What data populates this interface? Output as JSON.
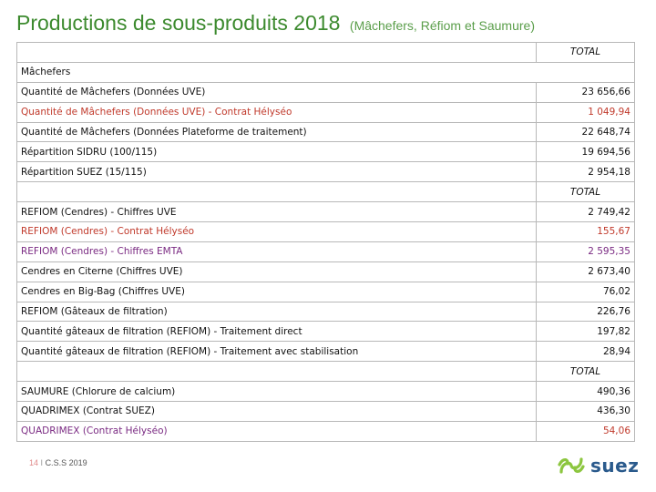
{
  "header": {
    "title": "Productions de sous-produits 2018",
    "subtitle": "(Mâchefers, Réfiom et Saumure)"
  },
  "table": {
    "mach_header": "TOTAL",
    "mach_section": "Mâchefers",
    "rows_mach": [
      {
        "label": "Quantité de Mâchefers (Données UVE)",
        "value": "23 656,66"
      },
      {
        "label": "Quantité de Mâchefers (Données UVE) - Contrat Hélyséo",
        "value": "1 049,94"
      },
      {
        "label": "Quantité de Mâchefers (Données Plateforme de traitement)",
        "value": "22 648,74"
      },
      {
        "label": "Répartition SIDRU (100/115)",
        "value": "19 694,56"
      },
      {
        "label": "Répartition SUEZ (15/115)",
        "value": "2 954,18"
      }
    ],
    "refiom_header": "TOTAL",
    "rows_refiom": [
      {
        "label": "REFIOM (Cendres) - Chiffres UVE",
        "value": "2 749,42"
      },
      {
        "label": "REFIOM (Cendres) - Contrat Hélyséo",
        "value": "155,67"
      },
      {
        "label": "REFIOM (Cendres) - Chiffres EMTA",
        "value": "2 595,35"
      },
      {
        "label": "Cendres en Citerne (Chiffres UVE)",
        "value": "2 673,40"
      },
      {
        "label": "Cendres en Big-Bag (Chiffres UVE)",
        "value": "76,02"
      },
      {
        "label": "REFIOM (Gâteaux de filtration)",
        "value": "226,76"
      },
      {
        "label": "Quantité gâteaux de filtration (REFIOM) - Traitement direct",
        "value": "197,82"
      },
      {
        "label": "Quantité gâteaux de filtration (REFIOM) - Traitement avec stabilisation",
        "value": "28,94"
      }
    ],
    "saumure_header": "TOTAL",
    "rows_saumure": [
      {
        "label": "SAUMURE (Chlorure de calcium)",
        "value": "490,36"
      },
      {
        "label": "QUADRIMEX (Contrat SUEZ)",
        "value": "436,30"
      },
      {
        "label": "QUADRIMEX (Contrat Hélyséo)",
        "value": "54,06"
      }
    ]
  },
  "footer": {
    "page": "14",
    "separator": "I",
    "org": "C.S.S 2019"
  },
  "logo": {
    "text": "suez",
    "icon": "suez-spiral-icon",
    "color": "#8cc63f"
  },
  "colors": {
    "title": "#3c8a2e",
    "accent_red": "#c0392b",
    "accent_purple": "#7a2a82"
  }
}
